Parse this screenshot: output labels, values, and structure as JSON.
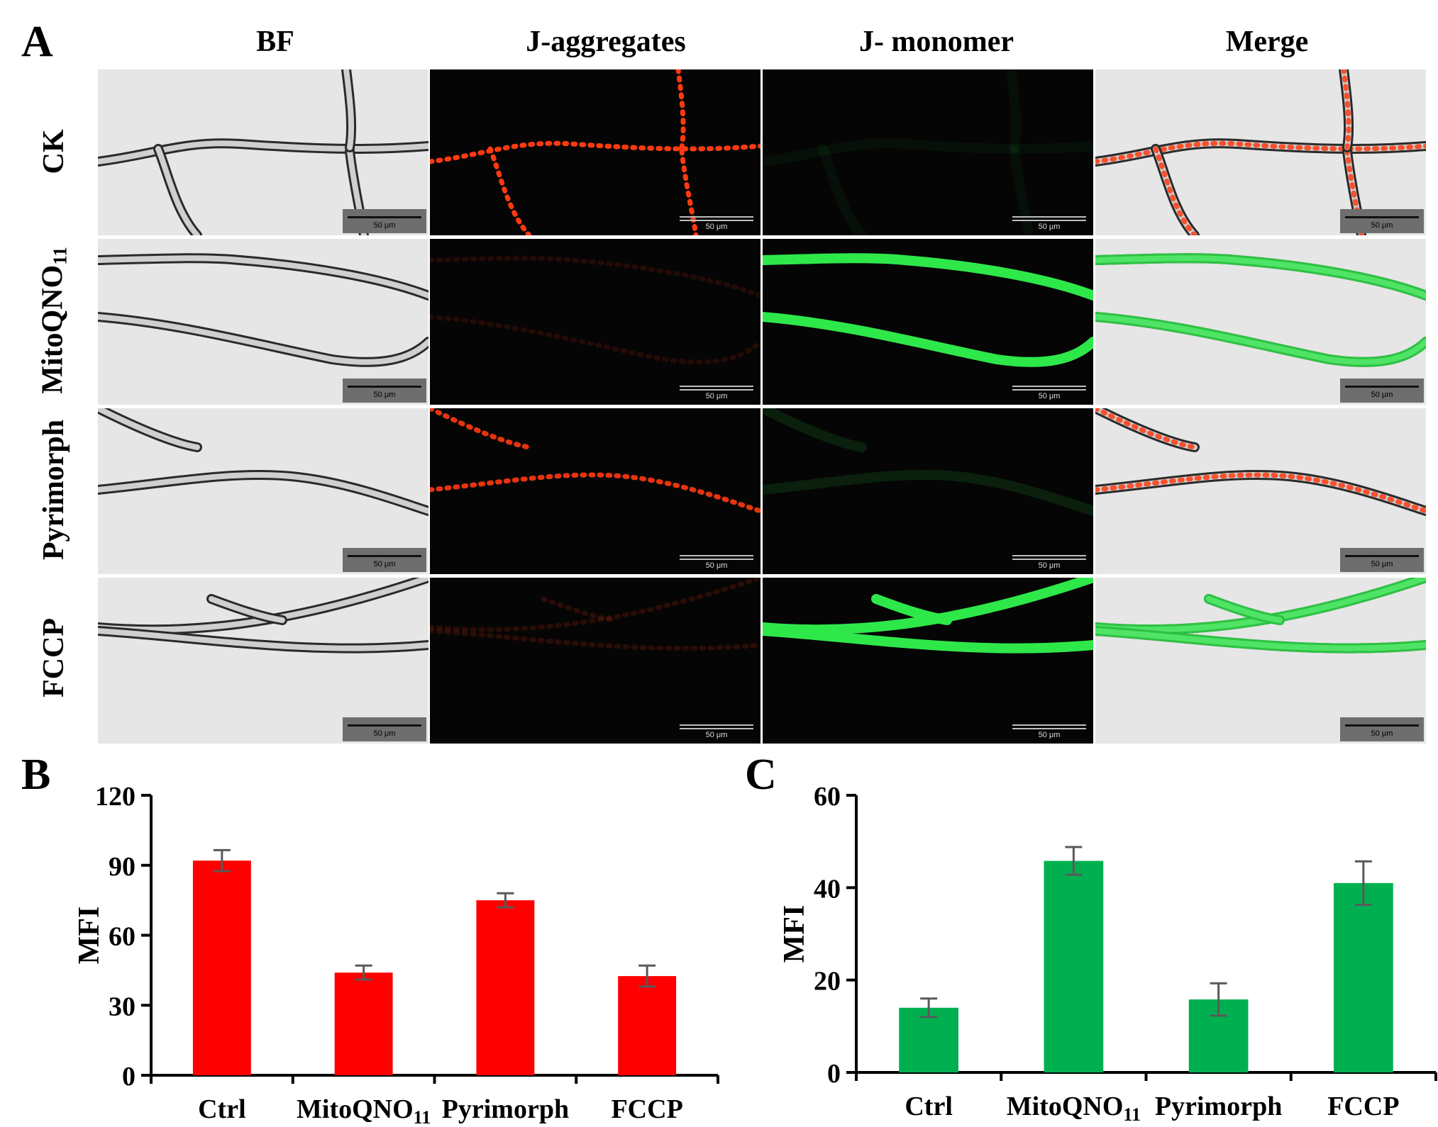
{
  "panels": {
    "a": "A",
    "b": "B",
    "c": "C"
  },
  "columns": [
    {
      "key": "bf",
      "label": "BF"
    },
    {
      "key": "agg",
      "label": "J-aggregates"
    },
    {
      "key": "mono",
      "label": "J- monomer"
    },
    {
      "key": "merge",
      "label": "Merge"
    }
  ],
  "rows": [
    {
      "label": "CK",
      "sub": ""
    },
    {
      "label": "MitoQNO",
      "sub": "11"
    },
    {
      "label": "Pyrimorph",
      "sub": ""
    },
    {
      "label": "FCCP",
      "sub": ""
    }
  ],
  "scale_bar_label": "50 μm",
  "colors": {
    "red_bar": "#ff0000",
    "green_bar": "#00b050",
    "error_bar": "#595959",
    "fluor_red": "#ff3a10",
    "fluor_green": "#2ee84a"
  },
  "chart_data": [
    {
      "id": "B",
      "type": "bar",
      "categories": [
        {
          "label": "Ctrl",
          "sub": ""
        },
        {
          "label": "MitoQNO",
          "sub": "11"
        },
        {
          "label": "Pyrimorph",
          "sub": ""
        },
        {
          "label": "FCCP",
          "sub": ""
        }
      ],
      "values": [
        92,
        44,
        75,
        42.5
      ],
      "errors": [
        4.5,
        3,
        3,
        4.5
      ],
      "ylabel": "MFI",
      "ylim": [
        0,
        120
      ],
      "yticks": [
        0,
        30,
        60,
        90,
        120
      ],
      "color": "#ff0000"
    },
    {
      "id": "C",
      "type": "bar",
      "categories": [
        {
          "label": "Ctrl",
          "sub": ""
        },
        {
          "label": "MitoQNO",
          "sub": "11"
        },
        {
          "label": "Pyrimorph",
          "sub": ""
        },
        {
          "label": "FCCP",
          "sub": ""
        }
      ],
      "values": [
        14,
        45.8,
        15.8,
        41
      ],
      "errors": [
        2,
        3,
        3.5,
        4.7
      ],
      "ylabel": "MFI",
      "ylim": [
        0,
        60
      ],
      "yticks": [
        0,
        20,
        40,
        60
      ],
      "color": "#00b050"
    }
  ]
}
